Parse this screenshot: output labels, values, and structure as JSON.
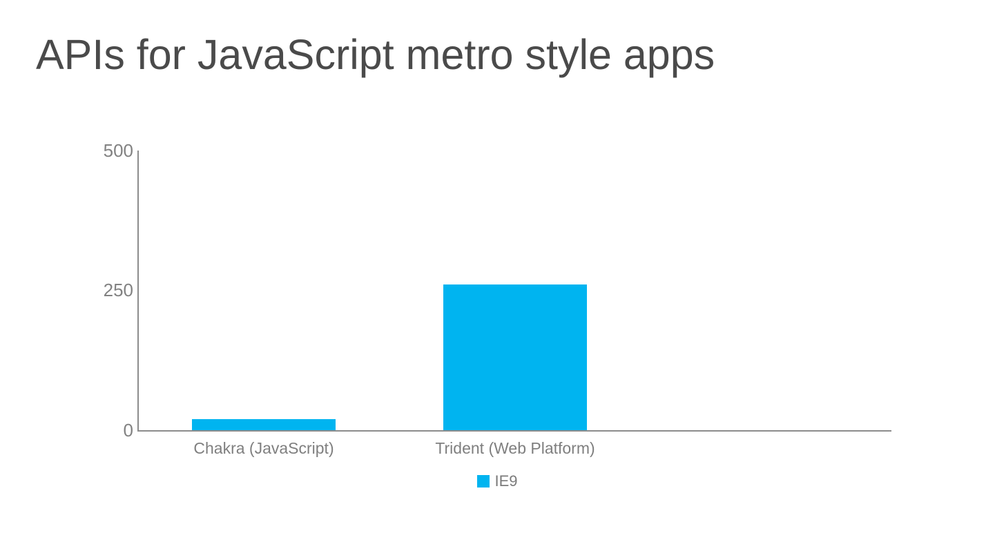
{
  "title": "APIs for JavaScript metro style apps",
  "colors": {
    "background": "#FFFFFF",
    "title_text": "#4A4A4A",
    "axis": "#8C8C8C",
    "tick_label_text": "#828282",
    "category_label_text": "#7F7F7F",
    "legend_text": "#7A7A7A",
    "bar": "#00B4F0"
  },
  "chart_data": {
    "type": "bar",
    "title": "APIs for JavaScript metro style apps",
    "categories": [
      "Chakra (JavaScript)",
      "Trident (Web Platform)"
    ],
    "series": [
      {
        "name": "IE9",
        "color": "#00B4F0",
        "values": [
          20,
          260
        ]
      }
    ],
    "xlabel": "",
    "ylabel": "",
    "ylim": [
      0,
      500
    ],
    "yticks": [
      0,
      250,
      500
    ],
    "grid": false,
    "tick_marks": false,
    "plot_background": "#FFFFFF",
    "legend_position": "bottom-center"
  }
}
